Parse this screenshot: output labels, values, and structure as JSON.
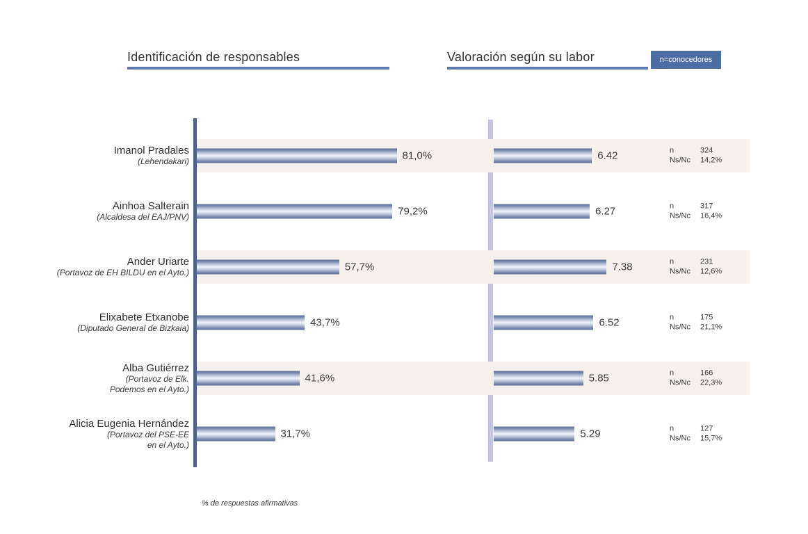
{
  "page": {
    "left_title": "Identificación de responsables",
    "right_title": "Valoración según su labor",
    "badge": "n=conocedores",
    "footnote": "% de respuestas afirmativas",
    "n_label": "n",
    "nsnc_label": "Ns/Nc"
  },
  "colors": {
    "accent_blue": "#5b79af",
    "badge_blue": "#4d6ea4",
    "axis_left": "#4c6390",
    "axis_right": "#c6c5e1",
    "stripe": "#f7f1ee",
    "bar_edge": "#5c6e94",
    "bar_center": "#eff3f9"
  },
  "rows": [
    {
      "name": "Imanol Pradales",
      "role1": "(Lehendakari)",
      "role2": "",
      "pct_label": "81,0%",
      "pct": 81.0,
      "score_label": "6.42",
      "score": 6.42,
      "n": "324",
      "nsnc": "14,2%"
    },
    {
      "name": "Ainhoa Salterain",
      "role1": "(Alcaldesa del EAJ/PNV)",
      "role2": "",
      "pct_label": "79,2%",
      "pct": 79.2,
      "score_label": "6.27",
      "score": 6.27,
      "n": "317",
      "nsnc": "16,4%"
    },
    {
      "name": "Ander Uriarte",
      "role1": "(Portavoz de EH BILDU en el Ayto.)",
      "role2": "",
      "pct_label": "57,7%",
      "pct": 57.7,
      "score_label": "7.38",
      "score": 7.38,
      "n": "231",
      "nsnc": "12,6%"
    },
    {
      "name": "Elixabete Etxanobe",
      "role1": "(Diputado General de Bizkaia)",
      "role2": "",
      "pct_label": "43,7%",
      "pct": 43.7,
      "score_label": "6.52",
      "score": 6.52,
      "n": "175",
      "nsnc": "21,1%"
    },
    {
      "name": "Alba Gutiérrez",
      "role1": "(Portavoz de Elk.",
      "role2": "Podemos en el Ayto.)",
      "pct_label": "41,6%",
      "pct": 41.6,
      "score_label": "5.85",
      "score": 5.85,
      "n": "166",
      "nsnc": "22,3%"
    },
    {
      "name": "Alicia Eugenia Hernández",
      "role1": "(Portavoz del PSE-EE",
      "role2": "en el Ayto.)",
      "pct_label": "31,7%",
      "pct": 31.7,
      "score_label": "5.29",
      "score": 5.29,
      "n": "127",
      "nsnc": "15,7%"
    }
  ],
  "chart_data": {
    "type": "bar",
    "orientation": "horizontal",
    "title": "Identificación de responsables / Valoración según su labor",
    "xlabel": "% de respuestas afirmativas",
    "legend_note": "n=conocedores",
    "categories": [
      "Imanol Pradales (Lehendakari)",
      "Ainhoa Salterain (Alcaldesa del EAJ/PNV)",
      "Ander Uriarte (Portavoz de EH BILDU en el Ayto.)",
      "Elixabete Etxanobe (Diputado General de Bizkaia)",
      "Alba Gutiérrez (Portavoz de Elk. Podemos en el Ayto.)",
      "Alicia Eugenia Hernández (Portavoz del PSE-EE en el Ayto.)"
    ],
    "series": [
      {
        "name": "Identificación de responsables (% respuestas afirmativas)",
        "values": [
          81.0,
          79.2,
          57.7,
          43.7,
          41.6,
          31.7
        ],
        "xlim": [
          0,
          100
        ]
      },
      {
        "name": "Valoración según su labor (media 0-10)",
        "values": [
          6.42,
          6.27,
          7.38,
          6.52,
          5.85,
          5.29
        ],
        "xlim": [
          0,
          10
        ]
      },
      {
        "name": "n (conocedores)",
        "values": [
          324,
          317,
          231,
          175,
          166,
          127
        ]
      },
      {
        "name": "Ns/Nc (%)",
        "values": [
          14.2,
          16.4,
          12.6,
          21.1,
          22.3,
          15.7
        ]
      }
    ],
    "grid": false,
    "legend_position": "top-right"
  }
}
